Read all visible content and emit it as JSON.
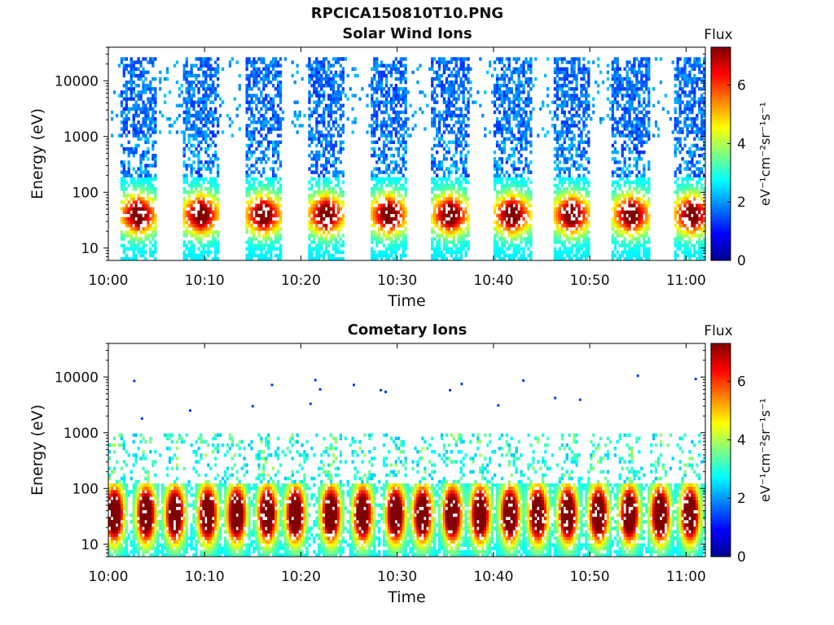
{
  "page": {
    "title": "RPCICA150810T10.PNG"
  },
  "colorbar": {
    "label": "Flux",
    "unit_label": "eV⁻¹cm⁻²sr⁻¹s⁻¹",
    "ticks": [
      "0",
      "2",
      "4",
      "6"
    ],
    "range": [
      0,
      7.3
    ],
    "colormap": "jet"
  },
  "chart_data": [
    {
      "type": "heatmap",
      "title": "Solar Wind Ions",
      "xlabel": "Time",
      "ylabel": "Energy (eV)",
      "x_tick_labels": [
        "10:00",
        "10:10",
        "10:20",
        "10:30",
        "10:40",
        "10:50",
        "11:00"
      ],
      "x_ticks_minutes": [
        0,
        10,
        20,
        30,
        40,
        50,
        60
      ],
      "xlim_minutes": [
        0,
        62
      ],
      "y_tick_labels": [
        "10",
        "100",
        "1000",
        "10000"
      ],
      "y_ticks": [
        10,
        100,
        1000,
        10000
      ],
      "ylim": [
        6,
        40000
      ],
      "y_scale": "log",
      "burst_centers_minutes": [
        3.0,
        9.5,
        16.0,
        22.5,
        29.0,
        35.4,
        41.8,
        48.0,
        54.2,
        60.5
      ],
      "burst_half_width_minutes": 2.0,
      "data_energy_gap_eV": [
        200,
        1000
      ],
      "peak_energy_eV": 40,
      "peak_flux": 6.0,
      "high_energy_flux": 1.2
    },
    {
      "type": "heatmap",
      "title": "Cometary Ions",
      "xlabel": "Time",
      "ylabel": "Energy (eV)",
      "x_tick_labels": [
        "10:00",
        "10:10",
        "10:20",
        "10:30",
        "10:40",
        "10:50",
        "11:00"
      ],
      "x_ticks_minutes": [
        0,
        10,
        20,
        30,
        40,
        50,
        60
      ],
      "xlim_minutes": [
        0,
        62
      ],
      "y_tick_labels": [
        "10",
        "100",
        "1000",
        "10000"
      ],
      "y_ticks": [
        10,
        100,
        1000,
        10000
      ],
      "ylim": [
        6,
        40000
      ],
      "y_scale": "log",
      "burst_centers_minutes": [
        0.5,
        3.8,
        6.8,
        10.2,
        13.2,
        16.4,
        19.3,
        23.0,
        26.3,
        29.7,
        32.5,
        35.6,
        38.5,
        41.6,
        44.5,
        47.6,
        50.8,
        54.0,
        57.2,
        60.3
      ],
      "peak_energy_eV": 35,
      "peak_flux": 7.0,
      "sparse_points": [
        {
          "t": 2.7,
          "e": 8500
        },
        {
          "t": 17.0,
          "e": 7200
        },
        {
          "t": 21.5,
          "e": 8800
        },
        {
          "t": 22.0,
          "e": 6000
        },
        {
          "t": 25.5,
          "e": 7200
        },
        {
          "t": 28.3,
          "e": 5800
        },
        {
          "t": 28.8,
          "e": 5400
        },
        {
          "t": 35.5,
          "e": 5800
        },
        {
          "t": 36.7,
          "e": 7500
        },
        {
          "t": 43.1,
          "e": 8600
        },
        {
          "t": 46.4,
          "e": 4200
        },
        {
          "t": 49.0,
          "e": 3900
        },
        {
          "t": 55.0,
          "e": 10500
        },
        {
          "t": 61.0,
          "e": 9200
        },
        {
          "t": 15.0,
          "e": 3000
        },
        {
          "t": 3.5,
          "e": 1800
        },
        {
          "t": 8.5,
          "e": 2500
        },
        {
          "t": 21.0,
          "e": 3300
        },
        {
          "t": 40.5,
          "e": 3100
        }
      ]
    }
  ]
}
